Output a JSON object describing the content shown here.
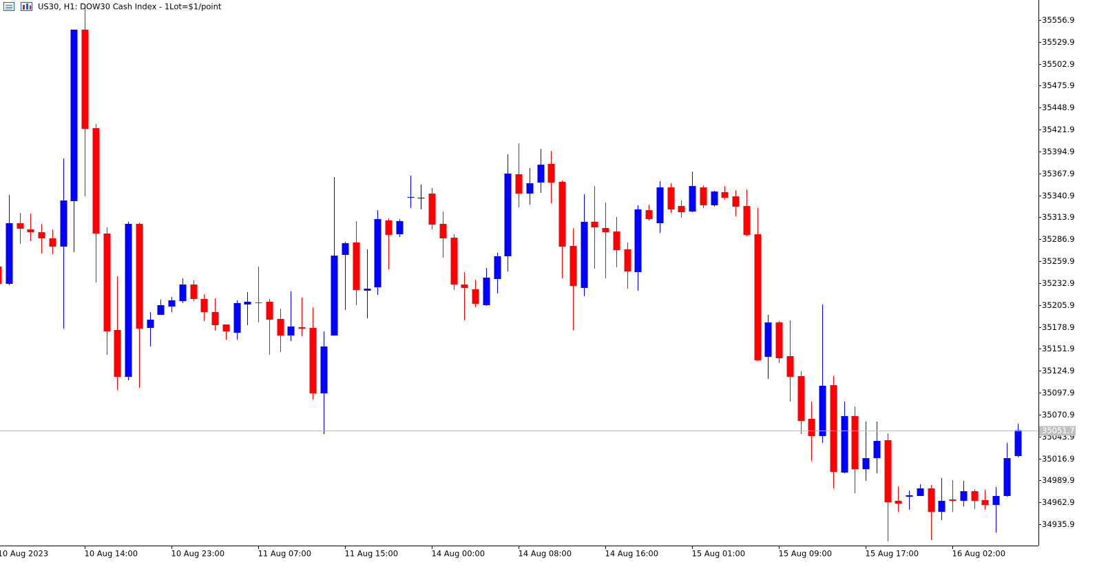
{
  "chart_data": {
    "type": "candlestick",
    "title": "US30, H1:  DOW30 Cash Index - 1Lot=$1/point",
    "categories": [
      "10 Aug 2023",
      null,
      null,
      null,
      null,
      null,
      null,
      null,
      "10 Aug 14:00",
      null,
      null,
      null,
      null,
      null,
      null,
      null,
      "10 Aug 23:00",
      null,
      null,
      null,
      null,
      null,
      null,
      null,
      "11 Aug 07:00",
      null,
      null,
      null,
      null,
      null,
      null,
      null,
      "11 Aug 15:00",
      null,
      null,
      null,
      null,
      null,
      null,
      null,
      "14 Aug 00:00",
      null,
      null,
      null,
      null,
      null,
      null,
      null,
      "14 Aug 08:00",
      null,
      null,
      null,
      null,
      null,
      null,
      null,
      "14 Aug 16:00",
      null,
      null,
      null,
      null,
      null,
      null,
      null,
      "15 Aug 01:00",
      null,
      null,
      null,
      null,
      null,
      null,
      null,
      "15 Aug 09:00",
      null,
      null,
      null,
      null,
      null,
      null,
      null,
      "15 Aug 17:00",
      null,
      null,
      null,
      null,
      null,
      null,
      null,
      "16 Aug 02:00",
      null,
      null,
      null,
      null,
      null,
      null
    ],
    "open": [
      35253.2,
      35232.0,
      35306.6,
      35299.0,
      35295.6,
      35288.0,
      35277.8,
      35333.8,
      35545.0,
      35423.7,
      35293.9,
      35175.1,
      35117.4,
      35305.8,
      35177.7,
      35193.8,
      35204.0,
      35210.7,
      35231.1,
      35213.3,
      35197.2,
      35181.9,
      35171.7,
      35206.5,
      35209.0,
      35209.9,
      35188.7,
      35168.3,
      35178.5,
      35177.7,
      35097.1,
      35168.3,
      35267.6,
      35282.9,
      35223.5,
      35227.7,
      35310.0,
      35293.0,
      35338.0,
      35338.0,
      35343.1,
      35305.8,
      35288.8,
      35231.1,
      35225.2,
      35205.7,
      35237.9,
      35265.9,
      35366.9,
      35343.1,
      35356.7,
      35379.6,
      35357.5,
      35278.6,
      35226.9,
      35308.3,
      35300.7,
      35296.4,
      35274.4,
      35246.4,
      35322.7,
      35306.6,
      35350.7,
      35327.8,
      35321.0,
      35350.7,
      35328.7,
      35344.8,
      35339.7,
      35327.8,
      35293.0,
      35142.0,
      35184.4,
      35142.9,
      35118.3,
      35065.7,
      35044.5,
      35107.2,
      34999.5,
      35069.1,
      35003.7,
      35017.3,
      35039.4,
      34964.7,
      34969.8,
      34970.7,
      34980.0,
      34951.1,
      34966.4,
      34964.7,
      34976.6,
      34965.6,
      34959.6,
      34970.7,
      35019.9
    ],
    "high": [
      35254.9,
      35341.4,
      35319.3,
      35318.5,
      35305.8,
      35299.0,
      35386.4,
      35545.0,
      35573.0,
      35428.8,
      35301.5,
      35241.3,
      35308.3,
      35307.5,
      35197.2,
      35212.4,
      35215.8,
      35238.7,
      35236.2,
      35219.2,
      35214.1,
      35181.9,
      35211.6,
      35221.8,
      35253.2,
      35213.3,
      35201.4,
      35222.6,
      35215.0,
      35203.1,
      35173.4,
      35363.5,
      35283.7,
      35309.2,
      35274.4,
      35322.7,
      35312.6,
      35311.7,
      35365.2,
      35354.1,
      35349.9,
      35321.0,
      35293.0,
      35246.4,
      35237.0,
      35251.5,
      35270.1,
      35391.5,
      35405.0,
      35374.5,
      35398.2,
      35395.7,
      35359.2,
      35300.7,
      35342.3,
      35352.4,
      35332.1,
      35314.3,
      35282.9,
      35328.7,
      35329.5,
      35358.4,
      35355.8,
      35334.6,
      35370.2,
      35353.3,
      35346.5,
      35352.4,
      35347.3,
      35348.2,
      35325.3,
      35193.8,
      35186.1,
      35187.0,
      35124.2,
      35086.9,
      35206.5,
      35118.3,
      35086.9,
      35080.9,
      35062.3,
      35062.3,
      35047.9,
      34982.5,
      34977.4,
      34985.1,
      34984.2,
      34992.7,
      34990.2,
      34989.3,
      34979.1,
      34978.3,
      34981.7,
      35036.0,
      35059.7
    ],
    "low": [
      35230.3,
      35230.3,
      35281.2,
      35284.6,
      35269.3,
      35268.4,
      35176.8,
      35271.0,
      35339.7,
      35233.7,
      35144.6,
      35101.3,
      35113.2,
      35103.9,
      35154.8,
      35193.8,
      35197.2,
      35208.2,
      35210.7,
      35186.1,
      35174.3,
      35163.2,
      35163.2,
      35181.1,
      35184.4,
      35144.6,
      35148.0,
      35161.5,
      35167.5,
      35089.4,
      35047.0,
      35168.3,
      35199.7,
      35205.7,
      35189.5,
      35218.4,
      35249.8,
      35289.7,
      35325.3,
      35323.6,
      35299.0,
      35264.2,
      35224.3,
      35187.0,
      35203.1,
      35204.8,
      35220.1,
      35247.2,
      35326.1,
      35329.5,
      35343.9,
      35331.2,
      35238.7,
      35175.1,
      35216.7,
      35250.6,
      35238.7,
      35252.3,
      35226.0,
      35223.5,
      35310.0,
      35294.7,
      35319.3,
      35313.4,
      35320.2,
      35325.3,
      35327.0,
      35335.5,
      35315.1,
      35290.5,
      35136.9,
      35114.9,
      35134.4,
      35086.9,
      35047.0,
      35013.9,
      35036.0,
      34980.0,
      34998.6,
      34974.0,
      34989.3,
      34998.6,
      34914.7,
      34951.1,
      34953.7,
      34970.7,
      34916.4,
      34941.0,
      34951.1,
      34957.9,
      34954.5,
      34953.7,
      34925.7,
      34969.8,
      35018.2
    ],
    "close": [
      35232.0,
      35306.6,
      35299.8,
      35295.6,
      35288.0,
      35277.8,
      35334.6,
      35545.0,
      35422.8,
      35293.9,
      35173.4,
      35117.4,
      35305.8,
      35176.8,
      35187.8,
      35205.7,
      35211.6,
      35231.1,
      35213.3,
      35197.2,
      35181.1,
      35173.4,
      35208.2,
      35209.9,
      35208.2,
      35187.8,
      35168.3,
      35179.4,
      35176.8,
      35097.1,
      35154.8,
      35266.7,
      35282.0,
      35224.3,
      35226.0,
      35311.7,
      35292.2,
      35309.2,
      35338.9,
      35338.0,
      35304.9,
      35288.0,
      35231.1,
      35226.9,
      35207.4,
      35239.6,
      35265.9,
      35367.7,
      35343.1,
      35355.8,
      35378.7,
      35356.7,
      35277.8,
      35229.4,
      35308.3,
      35301.5,
      35295.6,
      35273.5,
      35247.2,
      35323.6,
      35311.7,
      35350.7,
      35323.6,
      35320.2,
      35352.4,
      35328.7,
      35345.6,
      35338.0,
      35327.0,
      35292.2,
      35137.8,
      35184.4,
      35140.3,
      35117.4,
      35063.1,
      35044.5,
      35106.4,
      35000.3,
      35069.1,
      35003.7,
      35017.3,
      35038.5,
      34963.0,
      34961.3,
      34971.5,
      34980.0,
      34951.1,
      34964.7,
      34964.7,
      34976.6,
      34964.7,
      34959.6,
      34970.7,
      35017.3,
      35051.7
    ],
    "up_color": "#0000ff",
    "down_color": "#ff0000",
    "last_price": 35051.7,
    "ylim": [
      34909.6,
      35581.5
    ],
    "yticks": [
      35556.9,
      35529.9,
      35502.9,
      35475.9,
      35448.9,
      35421.9,
      35394.9,
      35367.9,
      35340.9,
      35313.9,
      35286.9,
      35259.9,
      35232.9,
      35205.9,
      35178.9,
      35151.9,
      35124.9,
      35097.9,
      35070.9,
      35043.9,
      35016.9,
      34989.9,
      34962.9,
      34935.9
    ]
  }
}
